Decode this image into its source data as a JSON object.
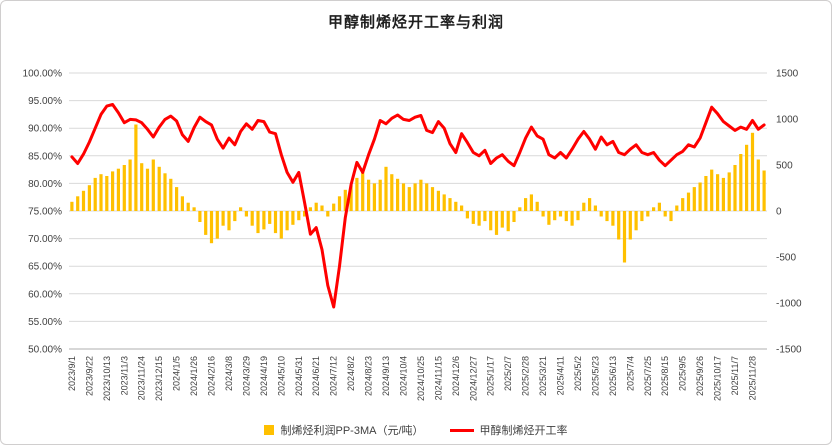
{
  "title": "甲醇制烯烃开工率与利润",
  "legend": [
    {
      "label": "制烯烃利润PP-3MA（元/吨）",
      "color": "#FFC000",
      "type": "bar"
    },
    {
      "label": "甲醇制烯烃开工率",
      "color": "#FF0000",
      "type": "line"
    }
  ],
  "colors": {
    "bar": "#FFC000",
    "line": "#FF0000",
    "grid": "#D9D9D9",
    "axis_line": "#BFBFBF",
    "axis_text": "#404040",
    "title_text": "#1F1F1F"
  },
  "chart_data": {
    "type": "combo",
    "x": [
      "2023/9/1",
      "2023/9/8",
      "2023/9/15",
      "2023/9/22",
      "2023/9/29",
      "2023/10/6",
      "2023/10/13",
      "2023/10/20",
      "2023/10/27",
      "2023/11/3",
      "2023/11/10",
      "2023/11/17",
      "2023/11/24",
      "2023/12/1",
      "2023/12/8",
      "2023/12/15",
      "2023/12/22",
      "2023/12/29",
      "2024/1/5",
      "2024/1/12",
      "2024/1/19",
      "2024/1/26",
      "2024/2/2",
      "2024/2/9",
      "2024/2/16",
      "2024/2/23",
      "2024/3/1",
      "2024/3/8",
      "2024/3/15",
      "2024/3/22",
      "2024/3/29",
      "2024/4/5",
      "2024/4/12",
      "2024/4/19",
      "2024/4/26",
      "2024/5/3",
      "2024/5/10",
      "2024/5/17",
      "2024/5/24",
      "2024/5/31",
      "2024/6/7",
      "2024/6/14",
      "2024/6/21",
      "2024/6/28",
      "2024/7/5",
      "2024/7/12",
      "2024/7/19",
      "2024/7/26",
      "2024/8/2",
      "2024/8/9",
      "2024/8/16",
      "2024/8/23",
      "2024/8/30",
      "2024/9/6",
      "2024/9/13",
      "2024/9/20",
      "2024/9/27",
      "2024/10/4",
      "2024/10/11",
      "2024/10/18",
      "2024/10/25",
      "2024/11/1",
      "2024/11/8",
      "2024/11/15",
      "2024/11/22",
      "2024/11/29",
      "2024/12/6",
      "2024/12/13",
      "2024/12/20",
      "2024/12/27",
      "2025/1/3",
      "2025/1/10",
      "2025/1/17",
      "2025/1/24",
      "2025/1/31",
      "2025/2/7",
      "2025/2/14",
      "2025/2/21",
      "2025/2/28",
      "2025/3/7",
      "2025/3/14",
      "2025/3/21",
      "2025/3/28",
      "2025/4/4",
      "2025/4/11",
      "2025/4/18",
      "2025/4/25",
      "2025/5/2",
      "2025/5/9",
      "2025/5/16",
      "2025/5/23",
      "2025/5/30",
      "2025/6/6",
      "2025/6/13",
      "2025/6/20",
      "2025/6/27",
      "2025/7/4",
      "2025/7/11",
      "2025/7/18",
      "2025/7/25",
      "2025/8/1",
      "2025/8/8",
      "2025/8/15",
      "2025/8/22",
      "2025/8/29",
      "2025/9/5",
      "2025/9/12",
      "2025/9/19",
      "2025/9/26",
      "2025/10/3",
      "2025/10/10",
      "2025/10/17",
      "2025/10/24",
      "2025/10/31",
      "2025/11/7",
      "2025/11/14",
      "2025/11/21",
      "2025/11/28",
      "2025/12/5",
      "2025/12/12"
    ],
    "x_tick_every": 3,
    "series": [
      {
        "name": "制烯烃利润PP-3MA（元/吨）",
        "type": "bar",
        "axis": "right",
        "values": [
          100,
          160,
          220,
          280,
          360,
          400,
          380,
          430,
          460,
          500,
          560,
          940,
          520,
          460,
          560,
          480,
          410,
          350,
          260,
          160,
          90,
          40,
          -120,
          -260,
          -350,
          -300,
          -160,
          -210,
          -110,
          40,
          -60,
          -160,
          -240,
          -200,
          -140,
          -240,
          -300,
          -210,
          -150,
          -100,
          -60,
          40,
          90,
          60,
          -60,
          80,
          160,
          230,
          280,
          360,
          420,
          340,
          300,
          340,
          480,
          400,
          350,
          300,
          260,
          300,
          340,
          300,
          260,
          220,
          180,
          140,
          100,
          60,
          -80,
          -140,
          -160,
          -110,
          -210,
          -260,
          -180,
          -220,
          -120,
          40,
          140,
          180,
          100,
          -60,
          -150,
          -100,
          -60,
          -110,
          -160,
          -100,
          90,
          140,
          60,
          -60,
          -110,
          -160,
          -310,
          -560,
          -310,
          -210,
          -110,
          -60,
          40,
          90,
          -60,
          -110,
          60,
          140,
          200,
          260,
          310,
          380,
          450,
          400,
          360,
          420,
          500,
          620,
          720,
          850,
          560,
          440
        ]
      },
      {
        "name": "甲醇制烯烃开工率",
        "type": "line",
        "axis": "left",
        "values": [
          84.8,
          83.6,
          85.3,
          87.5,
          90.0,
          92.5,
          94.0,
          94.3,
          92.8,
          91.0,
          91.6,
          91.5,
          91.0,
          89.8,
          88.4,
          90.2,
          91.6,
          92.2,
          91.3,
          88.8,
          87.6,
          90.1,
          92.0,
          91.2,
          90.6,
          88.0,
          86.4,
          88.2,
          87.0,
          89.4,
          90.8,
          89.8,
          91.4,
          91.2,
          89.3,
          89.0,
          85.2,
          82.0,
          80.2,
          82.0,
          76.5,
          70.8,
          72.0,
          68.0,
          61.5,
          57.6,
          65.0,
          73.8,
          79.8,
          83.8,
          82.0,
          85.2,
          88.0,
          91.4,
          90.8,
          91.8,
          92.4,
          91.6,
          91.4,
          92.0,
          92.3,
          89.6,
          89.2,
          91.2,
          90.0,
          87.2,
          85.6,
          89.0,
          87.4,
          85.6,
          85.0,
          86.0,
          83.6,
          84.6,
          85.2,
          84.0,
          83.2,
          85.6,
          88.2,
          90.2,
          88.6,
          88.0,
          85.2,
          84.6,
          85.6,
          84.6,
          86.2,
          88.0,
          89.4,
          88.0,
          86.2,
          88.4,
          87.0,
          87.6,
          85.6,
          85.2,
          86.2,
          87.0,
          85.6,
          85.2,
          85.6,
          84.2,
          83.2,
          84.2,
          85.2,
          85.8,
          87.0,
          86.6,
          88.2,
          91.0,
          93.8,
          92.6,
          91.2,
          90.4,
          89.6,
          90.2,
          89.8,
          91.4,
          89.8,
          90.6
        ]
      }
    ],
    "left_axis": {
      "min": 50,
      "max": 100,
      "step": 5,
      "tick_labels": [
        "100.00%",
        "95.00%",
        "90.00%",
        "85.00%",
        "80.00%",
        "75.00%",
        "70.00%",
        "65.00%",
        "60.00%",
        "55.00%",
        "50.00%"
      ]
    },
    "right_axis": {
      "min": -1500,
      "max": 1500,
      "step": 500,
      "tick_labels": [
        "1500",
        "1000",
        "500",
        "0",
        "-500",
        "-1000",
        "-1500"
      ]
    }
  }
}
